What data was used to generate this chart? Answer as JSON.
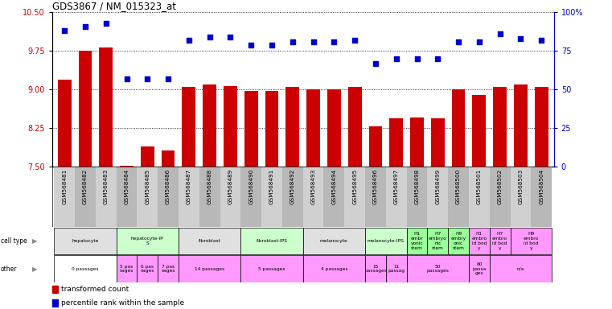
{
  "title": "GDS3867 / NM_015323_at",
  "samples": [
    "GSM568481",
    "GSM568482",
    "GSM568483",
    "GSM568484",
    "GSM568485",
    "GSM568486",
    "GSM568487",
    "GSM568488",
    "GSM568489",
    "GSM568490",
    "GSM568491",
    "GSM568492",
    "GSM568493",
    "GSM568494",
    "GSM568495",
    "GSM568496",
    "GSM568497",
    "GSM568498",
    "GSM568499",
    "GSM568500",
    "GSM568501",
    "GSM568502",
    "GSM568503",
    "GSM568504"
  ],
  "bar_values": [
    9.2,
    9.75,
    9.82,
    7.52,
    7.9,
    7.82,
    9.06,
    9.1,
    9.07,
    8.98,
    8.98,
    9.05,
    9.0,
    9.0,
    9.06,
    8.28,
    8.44,
    8.46,
    8.44,
    9.0,
    8.9,
    9.06,
    9.1,
    9.06
  ],
  "dot_values": [
    88,
    91,
    93,
    57,
    57,
    57,
    82,
    84,
    84,
    79,
    79,
    81,
    81,
    81,
    82,
    67,
    70,
    70,
    70,
    81,
    81,
    86,
    83,
    82
  ],
  "bar_bottom": 7.5,
  "ylim_left": [
    7.5,
    10.5
  ],
  "ylim_right": [
    0,
    100
  ],
  "yticks_left": [
    7.5,
    8.25,
    9.0,
    9.75,
    10.5
  ],
  "yticks_right": [
    0,
    25,
    50,
    75,
    100
  ],
  "bar_color": "#cc0000",
  "dot_color": "#0000cc",
  "cell_type_groups": [
    {
      "label": "hepatocyte",
      "start": 0,
      "end": 2,
      "color": "#e0e0e0"
    },
    {
      "label": "hepatocyte-iP\nS",
      "start": 3,
      "end": 5,
      "color": "#ccffcc"
    },
    {
      "label": "fibroblast",
      "start": 6,
      "end": 8,
      "color": "#e0e0e0"
    },
    {
      "label": "fibroblast-IPS",
      "start": 9,
      "end": 11,
      "color": "#ccffcc"
    },
    {
      "label": "melanocyte",
      "start": 12,
      "end": 14,
      "color": "#e0e0e0"
    },
    {
      "label": "melanocyte-IPS",
      "start": 15,
      "end": 16,
      "color": "#ccffcc"
    },
    {
      "label": "H1\nembr\nyonic\nstem",
      "start": 17,
      "end": 17,
      "color": "#99ff99"
    },
    {
      "label": "H7\nembryo\nnic\nstem",
      "start": 18,
      "end": 18,
      "color": "#99ff99"
    },
    {
      "label": "H9\nembry\nonic\nstem",
      "start": 19,
      "end": 19,
      "color": "#99ff99"
    },
    {
      "label": "H1\nembro\nid bod\ny",
      "start": 20,
      "end": 20,
      "color": "#ff99ff"
    },
    {
      "label": "H7\nembro\nid bod\ny",
      "start": 21,
      "end": 21,
      "color": "#ff99ff"
    },
    {
      "label": "H9\nembro\nid bod\ny",
      "start": 22,
      "end": 23,
      "color": "#ff99ff"
    }
  ],
  "other_groups": [
    {
      "label": "0 passages",
      "start": 0,
      "end": 2,
      "color": "#ffffff"
    },
    {
      "label": "5 pas\nsages",
      "start": 3,
      "end": 3,
      "color": "#ff99ff"
    },
    {
      "label": "6 pas\nsages",
      "start": 4,
      "end": 4,
      "color": "#ff99ff"
    },
    {
      "label": "7 pas\nsages",
      "start": 5,
      "end": 5,
      "color": "#ff99ff"
    },
    {
      "label": "14 passages",
      "start": 6,
      "end": 8,
      "color": "#ff99ff"
    },
    {
      "label": "5 passages",
      "start": 9,
      "end": 11,
      "color": "#ff99ff"
    },
    {
      "label": "4 passages",
      "start": 12,
      "end": 14,
      "color": "#ff99ff"
    },
    {
      "label": "15\npassages",
      "start": 15,
      "end": 15,
      "color": "#ff99ff"
    },
    {
      "label": "11\npassag",
      "start": 16,
      "end": 16,
      "color": "#ff99ff"
    },
    {
      "label": "50\npassages",
      "start": 17,
      "end": 19,
      "color": "#ff99ff"
    },
    {
      "label": "60\npassa\nges",
      "start": 20,
      "end": 20,
      "color": "#ff99ff"
    },
    {
      "label": "n/a",
      "start": 21,
      "end": 23,
      "color": "#ff99ff"
    }
  ],
  "xtick_bg_colors": [
    "#d0d0d0",
    "#b8b8b8"
  ]
}
